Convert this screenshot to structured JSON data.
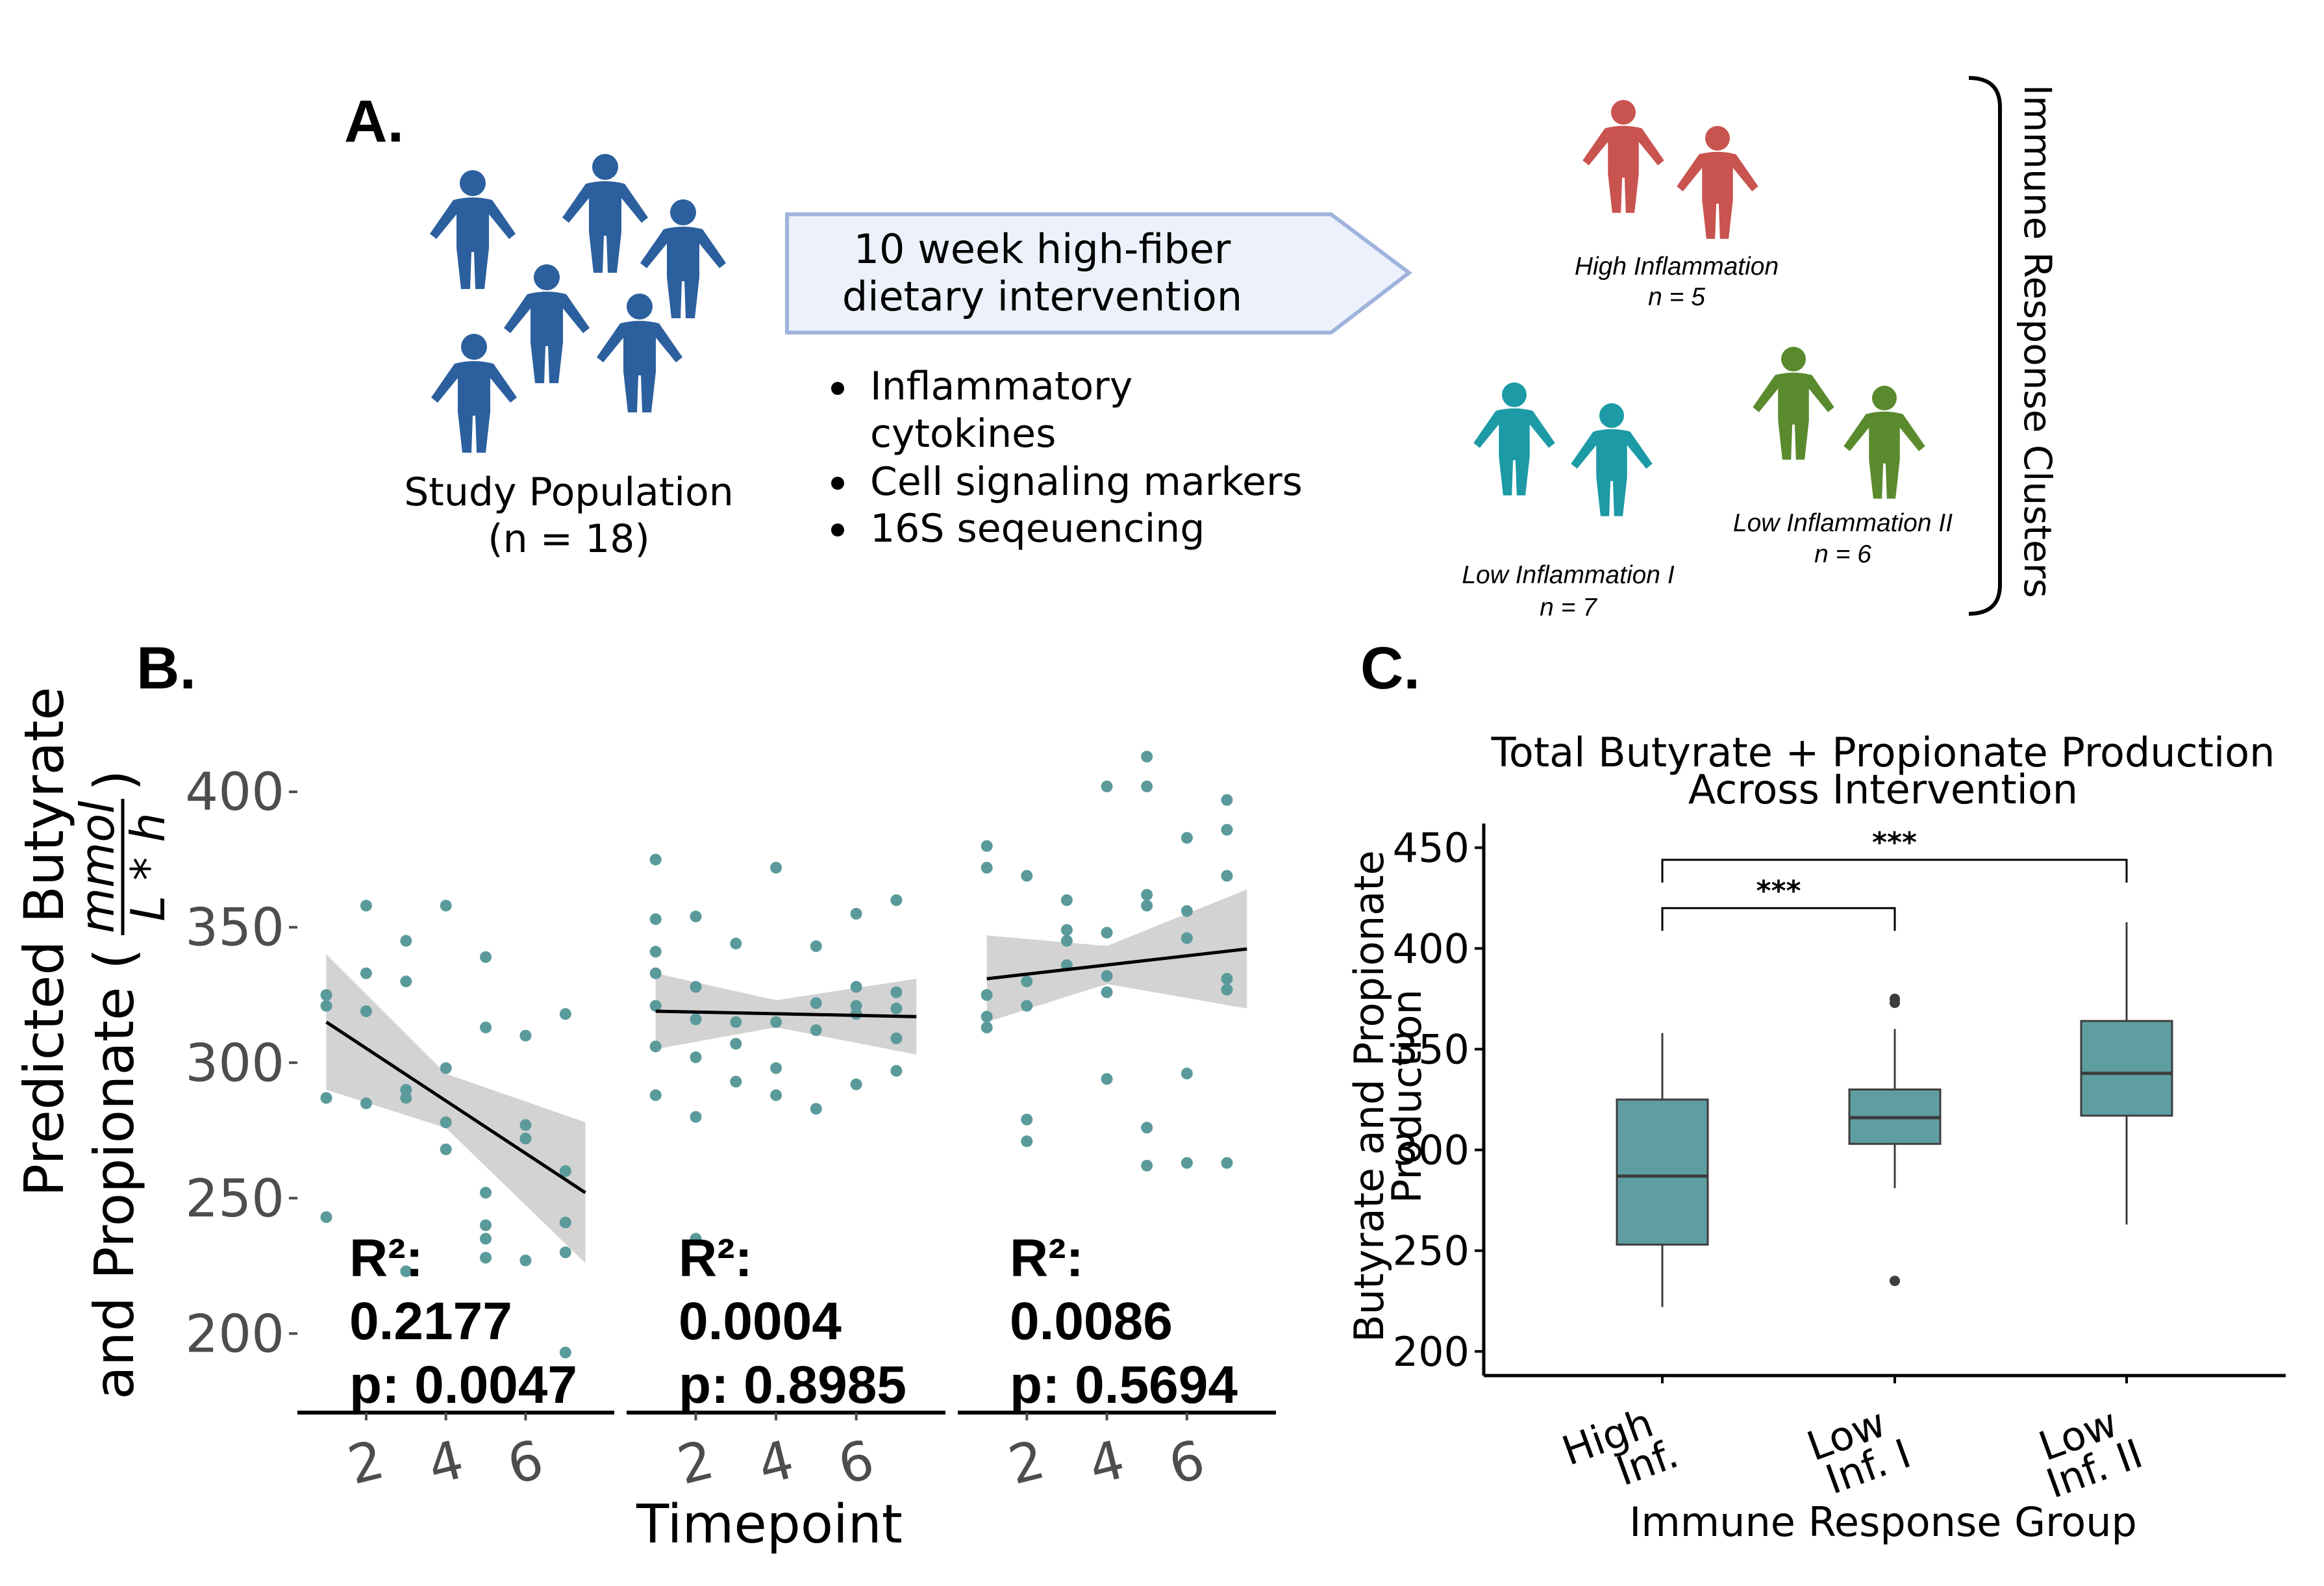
{
  "panel_a": {
    "letter": "A.",
    "study_population": "Study Population",
    "study_n": "(n = 18)",
    "intervention_line1": "10 week high-fiber",
    "intervention_line2": "dietary intervention",
    "bullets": [
      "Inflammatory",
      "cytokines",
      "Cell signaling markers",
      "16S seqeuencing"
    ],
    "groups": {
      "high": {
        "label": "High Inflammation",
        "n": "n = 5",
        "color": "#c9534f"
      },
      "low1": {
        "label": "Low Inflammation I",
        "n": "n = 7",
        "color": "#1c9aa6"
      },
      "low2": {
        "label": "Low Inflammation II",
        "n": "n = 6",
        "color": "#5a8a2e"
      }
    },
    "people_color": "#2c5f9e",
    "clusters_label": "Immune Response Clusters"
  },
  "panel_b": {
    "letter": "B.",
    "ylabel_line1": "Predicted Butyrate",
    "ylabel_line2": "and Propionate (",
    "ylabel_frac_num": "mmol",
    "ylabel_frac_den": "L * h",
    "ylabel_close": ")",
    "xlabel": "Timepoint",
    "stats": [
      {
        "r2_label": "R²:",
        "r2": "0.2177",
        "p": "p: 0.0047"
      },
      {
        "r2_label": "R²:",
        "r2": "0.0004",
        "p": "p: 0.8985"
      },
      {
        "r2_label": "R²:",
        "r2": "0.0086",
        "p": "p: 0.5694"
      }
    ]
  },
  "panel_c": {
    "letter": "C.",
    "title_line1": "Total Butyrate + Propionate Production",
    "title_line2": "Across Intervention",
    "ylabel_line1": "Butyrate and Propionate",
    "ylabel_line2": "Production",
    "xlabel": "Immune Response Group",
    "category_lines": [
      [
        "High",
        "Inf."
      ],
      [
        "Low",
        "Inf. I"
      ],
      [
        "Low",
        "Inf. II"
      ]
    ],
    "sig_labels": [
      "***",
      "***"
    ]
  },
  "colors": {
    "point": "#5b9a9a",
    "box": "#5f9ea0",
    "ci_band": "#d3d3d3",
    "axis_text": "#4d4d4d"
  },
  "chart_data": [
    {
      "type": "scatter",
      "panel": "B",
      "description_facets": 3,
      "xlabel": "Timepoint",
      "ylabel": "Predicted Butyrate and Propionate (mmol / L*h)",
      "ylim": [
        190,
        413
      ],
      "yticks": [
        200,
        250,
        300,
        350,
        400
      ],
      "xticks": [
        2,
        4,
        6
      ],
      "xlim": [
        0.6,
        7.9
      ],
      "facets": [
        {
          "fit": {
            "x": [
              1,
              7.5
            ],
            "y": [
              315,
              252
            ]
          },
          "ci_width": [
            [
              1,
              25
            ],
            [
              4,
              10
            ],
            [
              7.5,
              26
            ]
          ],
          "points": [
            [
              1,
              325
            ],
            [
              1,
              321
            ],
            [
              1,
              287
            ],
            [
              1,
              243
            ],
            [
              2,
              358
            ],
            [
              2,
              333
            ],
            [
              2,
              319
            ],
            [
              2,
              285
            ],
            [
              3,
              345
            ],
            [
              3,
              330
            ],
            [
              3,
              290
            ],
            [
              3,
              287
            ],
            [
              3,
              223
            ],
            [
              4,
              358
            ],
            [
              4,
              298
            ],
            [
              4,
              278
            ],
            [
              4,
              268
            ],
            [
              5,
              339
            ],
            [
              5,
              313
            ],
            [
              5,
              252
            ],
            [
              5,
              240
            ],
            [
              5,
              235
            ],
            [
              5,
              228
            ],
            [
              6,
              310
            ],
            [
              6,
              277
            ],
            [
              6,
              272
            ],
            [
              6,
              227
            ],
            [
              7,
              318
            ],
            [
              7,
              260
            ],
            [
              7,
              241
            ],
            [
              7,
              230
            ],
            [
              7,
              193
            ]
          ]
        },
        {
          "fit": {
            "x": [
              1,
              7.5
            ],
            "y": [
              319,
              317
            ]
          },
          "ci_width": [
            [
              1,
              14
            ],
            [
              4,
              5
            ],
            [
              7.5,
              14
            ]
          ],
          "points": [
            [
              1,
              375
            ],
            [
              1,
              353
            ],
            [
              1,
              341
            ],
            [
              1,
              333
            ],
            [
              1,
              321
            ],
            [
              1,
              306
            ],
            [
              1,
              288
            ],
            [
              2,
              354
            ],
            [
              2,
              328
            ],
            [
              2,
              316
            ],
            [
              2,
              302
            ],
            [
              2,
              280
            ],
            [
              2,
              235
            ],
            [
              3,
              344
            ],
            [
              3,
              315
            ],
            [
              3,
              307
            ],
            [
              3,
              293
            ],
            [
              4,
              372
            ],
            [
              4,
              315
            ],
            [
              4,
              298
            ],
            [
              4,
              288
            ],
            [
              5,
              343
            ],
            [
              5,
              322
            ],
            [
              5,
              312
            ],
            [
              5,
              283
            ],
            [
              6,
              355
            ],
            [
              6,
              328
            ],
            [
              6,
              321
            ],
            [
              6,
              318
            ],
            [
              6,
              292
            ],
            [
              7,
              360
            ],
            [
              7,
              326
            ],
            [
              7,
              320
            ],
            [
              7,
              309
            ],
            [
              7,
              297
            ]
          ]
        },
        {
          "fit": {
            "x": [
              1,
              7.5
            ],
            "y": [
              331,
              342
            ]
          },
          "ci_width": [
            [
              1,
              16
            ],
            [
              4,
              7
            ],
            [
              7.5,
              22
            ]
          ],
          "points": [
            [
              1,
              380
            ],
            [
              1,
              372
            ],
            [
              1,
              325
            ],
            [
              1,
              317
            ],
            [
              1,
              313
            ],
            [
              2,
              369
            ],
            [
              2,
              330
            ],
            [
              2,
              321
            ],
            [
              2,
              279
            ],
            [
              2,
              271
            ],
            [
              3,
              360
            ],
            [
              3,
              349
            ],
            [
              3,
              345
            ],
            [
              3,
              336
            ],
            [
              4,
              402
            ],
            [
              4,
              348
            ],
            [
              4,
              332
            ],
            [
              4,
              326
            ],
            [
              4,
              294
            ],
            [
              5,
              413
            ],
            [
              5,
              402
            ],
            [
              5,
              362
            ],
            [
              5,
              358
            ],
            [
              5,
              276
            ],
            [
              5,
              262
            ],
            [
              6,
              383
            ],
            [
              6,
              356
            ],
            [
              6,
              346
            ],
            [
              6,
              296
            ],
            [
              6,
              263
            ],
            [
              7,
              397
            ],
            [
              7,
              386
            ],
            [
              7,
              369
            ],
            [
              7,
              331
            ],
            [
              7,
              327
            ],
            [
              7,
              263
            ]
          ]
        }
      ]
    },
    {
      "type": "box",
      "panel": "C",
      "title": "Total Butyrate + Propionate Production Across Intervention",
      "xlabel": "Immune Response Group",
      "ylabel": "Butyrate and Propionate Production",
      "categories": [
        "High Inf.",
        "Low Inf. I",
        "Low Inf. II"
      ],
      "ylim": [
        188,
        462
      ],
      "yticks": [
        200,
        250,
        300,
        350,
        400,
        450
      ],
      "boxes": [
        {
          "whisker_low": 222,
          "q1": 253,
          "median": 287,
          "q3": 325,
          "whisker_high": 358,
          "outliers": []
        },
        {
          "whisker_low": 281,
          "q1": 303,
          "median": 316,
          "q3": 330,
          "whisker_high": 360,
          "outliers": [
            235,
            373,
            375
          ]
        },
        {
          "whisker_low": 263,
          "q1": 317,
          "median": 338,
          "q3": 364,
          "whisker_high": 413,
          "outliers": []
        }
      ],
      "significance": [
        {
          "from": 0,
          "to": 1,
          "y": 420,
          "label": "***"
        },
        {
          "from": 0,
          "to": 2,
          "y": 444,
          "label": "***"
        }
      ]
    }
  ]
}
